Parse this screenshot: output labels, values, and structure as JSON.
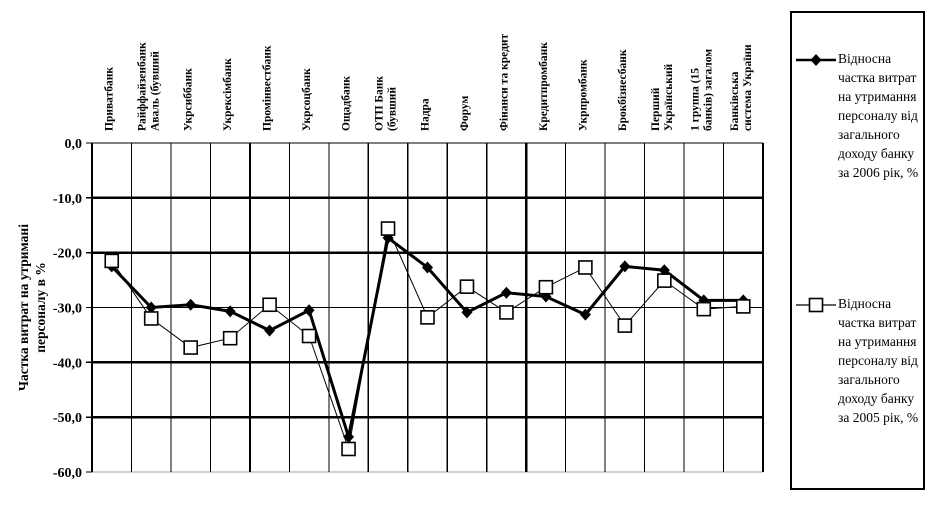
{
  "chart_data": {
    "type": "line",
    "title": "",
    "ylabel": "Частка витрат на утримані персоналу в %",
    "ylabel_lines": [
      "Частка витрат на утримані",
      "персоналу в %"
    ],
    "ylim": [
      -60,
      0
    ],
    "ytick_step": 10,
    "ytick_labels": [
      "0,0",
      "-10,0",
      "-20,0",
      "-30,0",
      "-40,0",
      "-50,0",
      "-60,0"
    ],
    "grid": true,
    "legend_position": "right",
    "thick_hlines": [
      -10,
      -20,
      -40,
      -50
    ],
    "thick_vlines_after": [
      4,
      11
    ],
    "categories": [
      "Приватбанк",
      "Райффайзенбанк\nАваль (бувший",
      "Укрсиббанк",
      "Укрексімбанк",
      "Промінвестбанк",
      "Укрсоцбанк",
      "Ощадбанк",
      "ОТП Банк\n(бувший",
      "Надра",
      "Форум",
      "Фінанси та кредит",
      "Кредитпромбанк",
      "Укрпромбанк",
      "Брокбізнесбанк",
      "Перший\nУкраїнський",
      "1 группа (15\nбанків) загалом",
      "Банківська\nсистема України"
    ],
    "series": [
      {
        "name": "Відносна частка витрат на утримання персоналу від загального доходу банку за 2006 рік, %",
        "marker": "filled-diamond",
        "line_width": 3,
        "values": [
          -22.5,
          -30.0,
          -29.5,
          -30.7,
          -34.2,
          -30.5,
          -53.6,
          -17.3,
          -22.7,
          -30.9,
          -27.3,
          -28.0,
          -31.3,
          -22.5,
          -23.2,
          -28.7,
          -28.7
        ]
      },
      {
        "name": "Відносна частка витрат на утримання персоналу від загального доходу банку за 2005 рік, %",
        "marker": "open-square",
        "line_width": 1,
        "values": [
          -21.5,
          -32.0,
          -37.3,
          -35.6,
          -29.5,
          -35.2,
          -55.8,
          -15.6,
          -31.8,
          -26.2,
          -30.9,
          -26.3,
          -22.7,
          -33.3,
          -25.1,
          -30.3,
          -29.8
        ]
      }
    ],
    "legend_entries": [
      {
        "marker": "filled-diamond",
        "lines": [
          "Відносна",
          "частка витрат",
          "на утримання",
          "персоналу від",
          "загального",
          "доходу банку",
          "за 2006 рік, %"
        ]
      },
      {
        "marker": "open-square",
        "lines": [
          "Відносна",
          "частка витрат",
          "на утримання",
          "персоналу від",
          "загального",
          "доходу банку",
          "за 2005 рік, %"
        ]
      }
    ],
    "colors": {
      "line": "#000000",
      "background": "#ffffff",
      "baseline_60": "#a0a0a0"
    }
  }
}
